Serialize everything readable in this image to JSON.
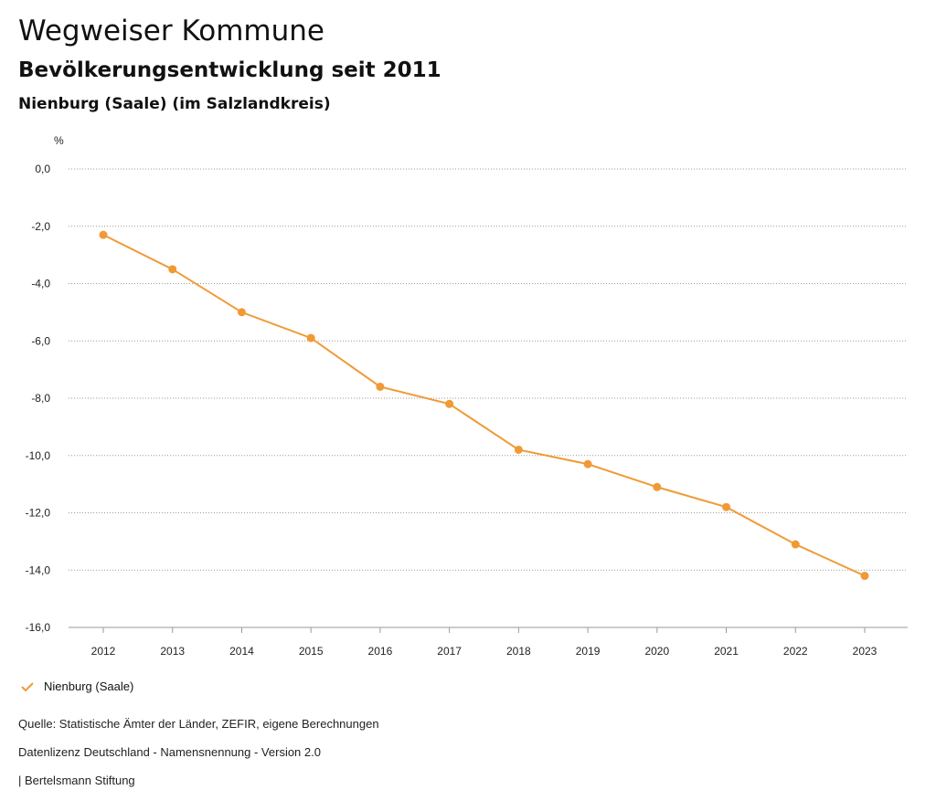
{
  "header": {
    "title": "Wegweiser Kommune",
    "subtitle": "Bevölkerungsentwicklung seit 2011",
    "region": "Nienburg (Saale) (im Salzlandkreis)"
  },
  "legend": {
    "label": "Nienburg (Saale)",
    "icon": "check-icon"
  },
  "footer": {
    "source": "Quelle: Statistische Ämter der Länder, ZEFIR, eigene Berechnungen",
    "license": "Datenlizenz Deutschland - Namensnennung - Version 2.0",
    "publisher": "| Bertelsmann Stiftung"
  },
  "chart_data": {
    "type": "line",
    "ylabel": "%",
    "ylim": [
      -16,
      0
    ],
    "yticks": [
      "0,0",
      "-2,0",
      "-4,0",
      "-6,0",
      "-8,0",
      "-10,0",
      "-12,0",
      "-14,0",
      "-16,0"
    ],
    "ytick_values": [
      0,
      -2,
      -4,
      -6,
      -8,
      -10,
      -12,
      -14,
      -16
    ],
    "categories": [
      "2012",
      "2013",
      "2014",
      "2015",
      "2016",
      "2017",
      "2018",
      "2019",
      "2020",
      "2021",
      "2022",
      "2023"
    ],
    "series": [
      {
        "name": "Nienburg (Saale)",
        "color": "#f09a36",
        "values": [
          -2.3,
          -3.5,
          -5.0,
          -5.9,
          -7.6,
          -8.2,
          -9.8,
          -10.3,
          -11.1,
          -11.8,
          -13.1,
          -14.2
        ]
      }
    ],
    "grid": true,
    "legend_position": "bottom-left"
  }
}
